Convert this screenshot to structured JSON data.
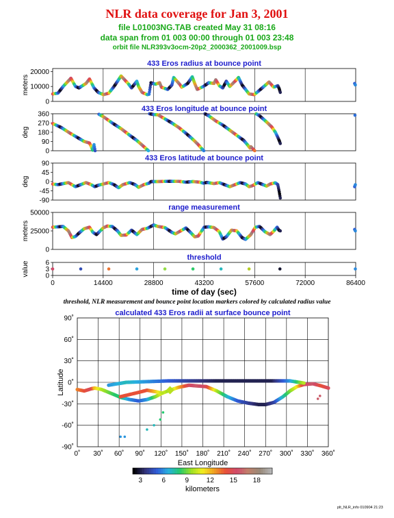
{
  "header": {
    "title": "NLR data coverage for Jan 3, 2001",
    "file_line": "file L01003NG.TAB created May 31 08:16",
    "span_line": "data span from 01 003 00:00 through 01 003 23:48",
    "orbit_line": "orbit file NLR393v3ocm-20p2_2000362_2001009.bsp"
  },
  "caption": "threshold, NLR measurement and bounce point location markers colored by calculated radius value",
  "footer": "plt_NLR_info 010904 21:23",
  "colors": {
    "title": "#e01010",
    "subtitle": "#18a818",
    "panel_title": "#1c1ccc"
  },
  "colorbar": {
    "ticks": [
      "3",
      "6",
      "9",
      "12",
      "15",
      "18"
    ],
    "label": "kilometers",
    "range": [
      2,
      20
    ],
    "stops": [
      "#000000",
      "#33337a",
      "#2f5bd8",
      "#28b0e0",
      "#22c86e",
      "#9ae024",
      "#f2ee20",
      "#f0a020",
      "#e85038",
      "#d04a6a",
      "#c0806a",
      "#988878",
      "#b4b4b4"
    ]
  },
  "chart_data": [
    {
      "type": "scatter",
      "panel": "radius",
      "title": "433 Eros radius at bounce point",
      "ylabel": "meters",
      "ylim": [
        0,
        22000
      ],
      "yticks": [
        "0",
        "10000",
        "20000"
      ],
      "xlim": [
        0,
        86400
      ],
      "xticks": [
        "0",
        "14400",
        "28800",
        "43200",
        "57600",
        "72000",
        "86400"
      ],
      "xlabel": "time of day (sec)",
      "points": [
        [
          0,
          5000
        ],
        [
          1500,
          5500
        ],
        [
          3000,
          10000
        ],
        [
          5200,
          15500
        ],
        [
          6500,
          10000
        ],
        [
          7500,
          9000
        ],
        [
          9500,
          12000
        ],
        [
          10500,
          15000
        ],
        [
          11800,
          9000
        ],
        [
          13000,
          6000
        ],
        [
          14500,
          4500
        ],
        [
          16000,
          5500
        ],
        [
          17500,
          10000
        ],
        [
          19500,
          17000
        ],
        [
          21500,
          12000
        ],
        [
          22500,
          9000
        ],
        [
          23500,
          12000
        ],
        [
          24000,
          13500
        ],
        [
          24500,
          10000
        ],
        [
          25500,
          6000
        ],
        [
          27000,
          4500
        ],
        [
          27500,
          4800
        ],
        [
          28000,
          12500
        ],
        [
          29300,
          11500
        ],
        [
          30500,
          12500
        ],
        [
          31000,
          9500
        ],
        [
          32800,
          8000
        ],
        [
          34000,
          11000
        ],
        [
          34500,
          16000
        ],
        [
          36200,
          11500
        ],
        [
          36800,
          9500
        ],
        [
          38500,
          12000
        ],
        [
          39800,
          16500
        ],
        [
          40500,
          12000
        ],
        [
          41200,
          8000
        ],
        [
          43000,
          10000
        ],
        [
          44500,
          12500
        ],
        [
          46000,
          12000
        ],
        [
          46500,
          14500
        ],
        [
          47500,
          10500
        ],
        [
          48500,
          9000
        ],
        [
          49500,
          13500
        ],
        [
          50500,
          10000
        ],
        [
          52000,
          13500
        ],
        [
          53000,
          16000
        ],
        [
          54000,
          11000
        ],
        [
          56000,
          5000
        ],
        [
          57500,
          4500
        ],
        [
          58500,
          6500
        ],
        [
          60000,
          9500
        ],
        [
          61700,
          13000
        ],
        [
          63000,
          9500
        ],
        [
          64200,
          10500
        ],
        [
          64600,
          8500
        ],
        [
          64900,
          6000
        ],
        [
          86100,
          12000
        ],
        [
          86300,
          11000
        ]
      ]
    },
    {
      "type": "scatter",
      "panel": "longitude",
      "title": "433 Eros longitude at bounce point",
      "ylabel": "deg",
      "ylim": [
        0,
        360
      ],
      "yticks": [
        "0",
        "90",
        "180",
        "270",
        "360"
      ],
      "xlim": [
        0,
        86400
      ],
      "points": [
        [
          0,
          265
        ],
        [
          2500,
          225
        ],
        [
          5000,
          170
        ],
        [
          7500,
          120
        ],
        [
          9000,
          90
        ],
        [
          10500,
          75
        ],
        [
          11000,
          40
        ],
        [
          11400,
          5
        ],
        [
          11800,
          60
        ],
        [
          12100,
          0
        ],
        [
          13200,
          355
        ],
        [
          14500,
          330
        ],
        [
          17000,
          270
        ],
        [
          19500,
          215
        ],
        [
          22000,
          150
        ],
        [
          24000,
          100
        ],
        [
          26000,
          40
        ],
        [
          27300,
          0
        ],
        [
          27600,
          360
        ],
        [
          28800,
          352
        ],
        [
          30000,
          350
        ],
        [
          31500,
          320
        ],
        [
          34000,
          270
        ],
        [
          36000,
          225
        ],
        [
          38000,
          170
        ],
        [
          40000,
          110
        ],
        [
          41500,
          60
        ],
        [
          42500,
          20
        ],
        [
          43100,
          0
        ],
        [
          43400,
          360
        ],
        [
          44500,
          340
        ],
        [
          46500,
          290
        ],
        [
          48500,
          250
        ],
        [
          50500,
          200
        ],
        [
          52500,
          150
        ],
        [
          54500,
          100
        ],
        [
          55500,
          60
        ],
        [
          56300,
          25
        ],
        [
          56500,
          40
        ],
        [
          57600,
          0
        ],
        [
          58000,
          360
        ],
        [
          59000,
          340
        ],
        [
          61000,
          280
        ],
        [
          62500,
          230
        ],
        [
          63500,
          180
        ],
        [
          64200,
          130
        ],
        [
          64700,
          90
        ],
        [
          64900,
          70
        ],
        [
          86200,
          345
        ]
      ]
    },
    {
      "type": "scatter",
      "panel": "latitude",
      "title": "433 Eros latitude at bounce point",
      "ylabel": "deg",
      "ylim": [
        -90,
        90
      ],
      "yticks": [
        "-90",
        "-45",
        "0",
        "45",
        "90"
      ],
      "xlim": [
        0,
        86400
      ],
      "points": [
        [
          0,
          -12
        ],
        [
          1500,
          -15
        ],
        [
          3000,
          -10
        ],
        [
          4500,
          -5
        ],
        [
          5500,
          -15
        ],
        [
          6500,
          -25
        ],
        [
          8000,
          -15
        ],
        [
          9500,
          -5
        ],
        [
          11000,
          -15
        ],
        [
          12000,
          -25
        ],
        [
          13000,
          -18
        ],
        [
          14400,
          -12
        ],
        [
          16000,
          -5
        ],
        [
          17500,
          -15
        ],
        [
          18800,
          -30
        ],
        [
          20000,
          -15
        ],
        [
          22000,
          -5
        ],
        [
          23500,
          -15
        ],
        [
          24500,
          -28
        ],
        [
          26000,
          -15
        ],
        [
          27500,
          -8
        ],
        [
          28000,
          0
        ],
        [
          30000,
          0
        ],
        [
          32000,
          1
        ],
        [
          34000,
          1
        ],
        [
          36000,
          1
        ],
        [
          38000,
          -3
        ],
        [
          40000,
          0
        ],
        [
          42000,
          -3
        ],
        [
          43000,
          -8
        ],
        [
          44000,
          -4
        ],
        [
          46000,
          -10
        ],
        [
          47500,
          -5
        ],
        [
          49000,
          -15
        ],
        [
          50500,
          -25
        ],
        [
          52000,
          -15
        ],
        [
          53500,
          -5
        ],
        [
          55000,
          -12
        ],
        [
          56000,
          -25
        ],
        [
          57000,
          -20
        ],
        [
          58500,
          -5
        ],
        [
          60000,
          -15
        ],
        [
          61000,
          -22
        ],
        [
          62000,
          -12
        ],
        [
          63500,
          -6
        ],
        [
          64200,
          -15
        ],
        [
          64600,
          -50
        ],
        [
          64900,
          -80
        ],
        [
          86100,
          -25
        ],
        [
          86300,
          -15
        ]
      ]
    },
    {
      "type": "scatter",
      "panel": "range",
      "title": "range measurement",
      "ylabel": "meters",
      "ylim": [
        0,
        50000
      ],
      "yticks": [
        "0",
        "25000",
        "50000"
      ],
      "xlim": [
        0,
        86400
      ],
      "points": [
        [
          0,
          30000
        ],
        [
          1500,
          30500
        ],
        [
          3000,
          31000
        ],
        [
          4500,
          25000
        ],
        [
          5500,
          16000
        ],
        [
          6500,
          17500
        ],
        [
          7500,
          22000
        ],
        [
          9000,
          28000
        ],
        [
          10500,
          30000
        ],
        [
          11500,
          23000
        ],
        [
          12500,
          20000
        ],
        [
          14400,
          29000
        ],
        [
          15500,
          31500
        ],
        [
          17000,
          31000
        ],
        [
          18500,
          25000
        ],
        [
          19500,
          19000
        ],
        [
          21000,
          19500
        ],
        [
          22500,
          26000
        ],
        [
          24000,
          20000
        ],
        [
          25500,
          27000
        ],
        [
          27000,
          28500
        ],
        [
          28800,
          33000
        ],
        [
          30000,
          31000
        ],
        [
          32000,
          29500
        ],
        [
          34000,
          23000
        ],
        [
          35000,
          21000
        ],
        [
          36500,
          25000
        ],
        [
          38000,
          29000
        ],
        [
          39500,
          22000
        ],
        [
          40500,
          17000
        ],
        [
          41500,
          18000
        ],
        [
          43200,
          30000
        ],
        [
          44500,
          30500
        ],
        [
          46000,
          29500
        ],
        [
          47500,
          24000
        ],
        [
          48500,
          14000
        ],
        [
          49500,
          17000
        ],
        [
          51000,
          26000
        ],
        [
          52500,
          25000
        ],
        [
          54000,
          16000
        ],
        [
          55000,
          13500
        ],
        [
          56500,
          20000
        ],
        [
          57800,
          30000
        ],
        [
          59000,
          31000
        ],
        [
          60500,
          24000
        ],
        [
          62000,
          20000
        ],
        [
          63000,
          24500
        ],
        [
          64000,
          30000
        ],
        [
          64500,
          26000
        ],
        [
          64900,
          25000
        ],
        [
          86100,
          27000
        ],
        [
          86300,
          25000
        ]
      ]
    },
    {
      "type": "scatter",
      "panel": "threshold",
      "title": "threshold",
      "ylabel": "value",
      "ylim": [
        0,
        6
      ],
      "yticks": [
        "0",
        "3",
        "6"
      ],
      "xlim": [
        0,
        86400
      ],
      "points": [
        [
          0,
          3
        ],
        [
          8000,
          3
        ],
        [
          16000,
          3
        ],
        [
          24000,
          3
        ],
        [
          32000,
          3
        ],
        [
          40000,
          3
        ],
        [
          48000,
          3
        ],
        [
          56000,
          3
        ],
        [
          64800,
          3
        ],
        [
          86300,
          3
        ]
      ]
    },
    {
      "type": "scatter",
      "panel": "map",
      "title": "calculated 433 Eros radii at surface bounce point",
      "xlabel": "East Longitude",
      "ylabel": "Latitude",
      "xlim": [
        0,
        360
      ],
      "ylim": [
        -90,
        90
      ],
      "xticks": [
        "0˚",
        "30˚",
        "60˚",
        "90˚",
        "120˚",
        "150˚",
        "180˚",
        "210˚",
        "240˚",
        "270˚",
        "300˚",
        "330˚",
        "360˚"
      ],
      "yticks": [
        "-90˚",
        "-60˚",
        "-30˚",
        "0˚",
        "30˚",
        "60˚",
        "90˚"
      ],
      "points": [
        [
          0,
          -10,
          13
        ],
        [
          10,
          -12,
          14
        ],
        [
          20,
          -9,
          15
        ],
        [
          25,
          -8,
          12
        ],
        [
          35,
          -10,
          10
        ],
        [
          45,
          -14,
          9
        ],
        [
          55,
          -18,
          8
        ],
        [
          62,
          -21,
          8
        ],
        [
          75,
          -24,
          6
        ],
        [
          88,
          -26,
          5
        ],
        [
          100,
          -24,
          6
        ],
        [
          112,
          -20,
          9
        ],
        [
          122,
          -15,
          11
        ],
        [
          133,
          -11,
          9
        ],
        [
          145,
          -7,
          12
        ],
        [
          160,
          -4,
          15
        ],
        [
          172,
          -5,
          16
        ],
        [
          185,
          -6,
          15
        ],
        [
          200,
          -12,
          10
        ],
        [
          215,
          -20,
          7
        ],
        [
          230,
          -26,
          5
        ],
        [
          245,
          -29,
          4
        ],
        [
          260,
          -31,
          3
        ],
        [
          270,
          -31,
          3
        ],
        [
          282,
          -28,
          4
        ],
        [
          295,
          -20,
          7
        ],
        [
          305,
          -12,
          9
        ],
        [
          315,
          -6,
          11
        ],
        [
          325,
          -3,
          15
        ],
        [
          338,
          -2,
          16
        ],
        [
          350,
          -5,
          14
        ],
        [
          360,
          -8,
          15
        ],
        [
          45,
          -4,
          6
        ],
        [
          70,
          0,
          7
        ],
        [
          100,
          1,
          6
        ],
        [
          130,
          2,
          5
        ],
        [
          160,
          2,
          4
        ],
        [
          200,
          2,
          3
        ],
        [
          240,
          2,
          3
        ],
        [
          280,
          2,
          3
        ],
        [
          305,
          2,
          6
        ],
        [
          325,
          -1,
          10
        ],
        [
          62,
          -20,
          14
        ],
        [
          75,
          -17,
          14
        ],
        [
          88,
          -14,
          14
        ],
        [
          100,
          -11,
          14
        ],
        [
          112,
          -13,
          12
        ],
        [
          122,
          -15,
          10
        ],
        [
          123,
          -42,
          8
        ],
        [
          119,
          -52,
          8
        ],
        [
          110,
          -60,
          7
        ],
        [
          100,
          -66,
          7
        ],
        [
          62,
          -76,
          6
        ],
        [
          68,
          -76,
          6
        ],
        [
          345,
          -23,
          16
        ],
        [
          348,
          -19,
          16
        ]
      ]
    }
  ]
}
